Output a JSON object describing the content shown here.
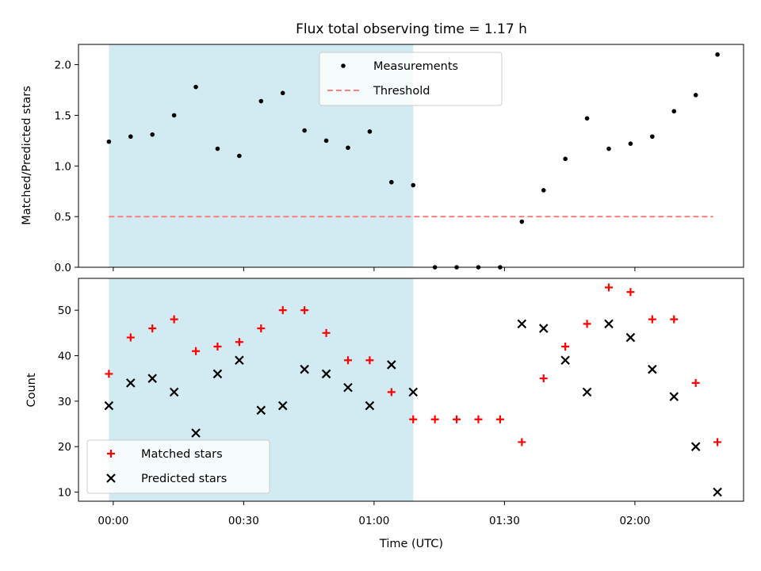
{
  "chart_data": {
    "type": "scatter",
    "title": "Flux total observing time = 1.17 h",
    "xlabel": "Time (UTC)",
    "x_ticks": [
      "00:00",
      "00:30",
      "01:00",
      "01:30",
      "02:00"
    ],
    "x_tick_minutes": [
      0,
      30,
      60,
      90,
      120
    ],
    "xlim_minutes": [
      -8,
      145
    ],
    "shaded_interval_minutes": [
      -1,
      69
    ],
    "colors": {
      "shade": "#add8e6",
      "measurements": "#000000",
      "threshold": "#ff7f7f",
      "matched": "#ff0000",
      "predicted": "#000000"
    },
    "panels": [
      {
        "ylabel": "Matched/Predicted stars",
        "ylim": [
          0,
          2.2
        ],
        "yticks": [
          0.0,
          0.5,
          1.0,
          1.5,
          2.0
        ],
        "ytick_labels": [
          "0.0",
          "0.5",
          "1.0",
          "1.5",
          "2.0"
        ],
        "legend_position": "upper-center",
        "series": [
          {
            "name": "Measurements",
            "marker": "dot",
            "x_minutes": [
              -1,
              4,
              9,
              14,
              19,
              24,
              29,
              34,
              39,
              44,
              49,
              54,
              59,
              64,
              69,
              74,
              79,
              84,
              89,
              94,
              99,
              104,
              109,
              114,
              119,
              124,
              129,
              134,
              139
            ],
            "y": [
              1.24,
              1.29,
              1.31,
              1.5,
              1.78,
              1.17,
              1.1,
              1.64,
              1.72,
              1.35,
              1.25,
              1.18,
              1.34,
              0.84,
              0.81,
              0.0,
              0.0,
              0.0,
              0.0,
              0.45,
              0.76,
              1.07,
              1.47,
              1.17,
              1.22,
              1.29,
              1.54,
              1.7,
              2.1
            ]
          },
          {
            "name": "Threshold",
            "marker": "dashed-line",
            "x_minutes": [
              -1,
              138
            ],
            "y": [
              0.5,
              0.5
            ]
          }
        ]
      },
      {
        "ylabel": "Count",
        "ylim": [
          8,
          57
        ],
        "yticks": [
          10,
          20,
          30,
          40,
          50
        ],
        "ytick_labels": [
          "10",
          "20",
          "30",
          "40",
          "50"
        ],
        "legend_position": "lower-left",
        "series": [
          {
            "name": "Matched stars",
            "marker": "plus",
            "x_minutes": [
              -1,
              4,
              9,
              14,
              19,
              24,
              29,
              34,
              39,
              44,
              49,
              54,
              59,
              64,
              69,
              74,
              79,
              84,
              89,
              94,
              99,
              104,
              109,
              114,
              119,
              124,
              129,
              134,
              139
            ],
            "y": [
              36,
              44,
              46,
              48,
              41,
              42,
              43,
              46,
              50,
              50,
              45,
              39,
              39,
              32,
              26,
              26,
              26,
              26,
              26,
              21,
              35,
              42,
              47,
              55,
              54,
              48,
              48,
              34,
              21
            ]
          },
          {
            "name": "Predicted stars",
            "marker": "x",
            "x_minutes": [
              -1,
              4,
              9,
              14,
              19,
              24,
              29,
              34,
              39,
              44,
              49,
              54,
              59,
              64,
              69,
              94,
              99,
              104,
              109,
              114,
              119,
              124,
              129,
              134,
              139
            ],
            "y": [
              29,
              34,
              35,
              32,
              23,
              36,
              39,
              28,
              29,
              37,
              36,
              33,
              29,
              38,
              32,
              47,
              46,
              39,
              32,
              47,
              44,
              37,
              31,
              20,
              10
            ]
          }
        ]
      }
    ]
  }
}
